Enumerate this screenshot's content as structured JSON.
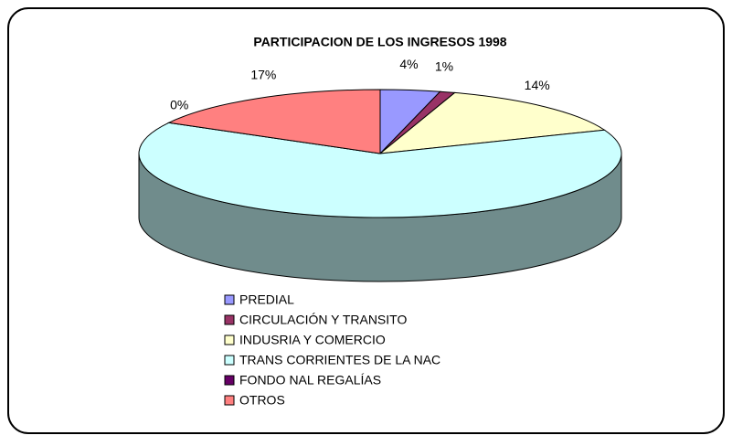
{
  "chart_data": {
    "type": "pie",
    "title": "PARTICIPACION DE LOS INGRESOS 1998",
    "categories": [
      "PREDIAL",
      "CIRCULACIÓN Y TRANSITO",
      "INDUSRIA Y COMERCIO",
      "TRANS CORRIENTES DE LA NAC",
      "FONDO NAL REGALÍAS",
      "OTROS"
    ],
    "values": [
      4,
      1,
      14,
      64,
      0,
      17
    ],
    "value_labels": [
      "4%",
      "1%",
      "14%",
      null,
      "0%",
      "17%"
    ],
    "colors": [
      "#9999ff",
      "#993366",
      "#ffffcc",
      "#ccffff",
      "#660066",
      "#ff8080"
    ],
    "legend": "bottom"
  }
}
